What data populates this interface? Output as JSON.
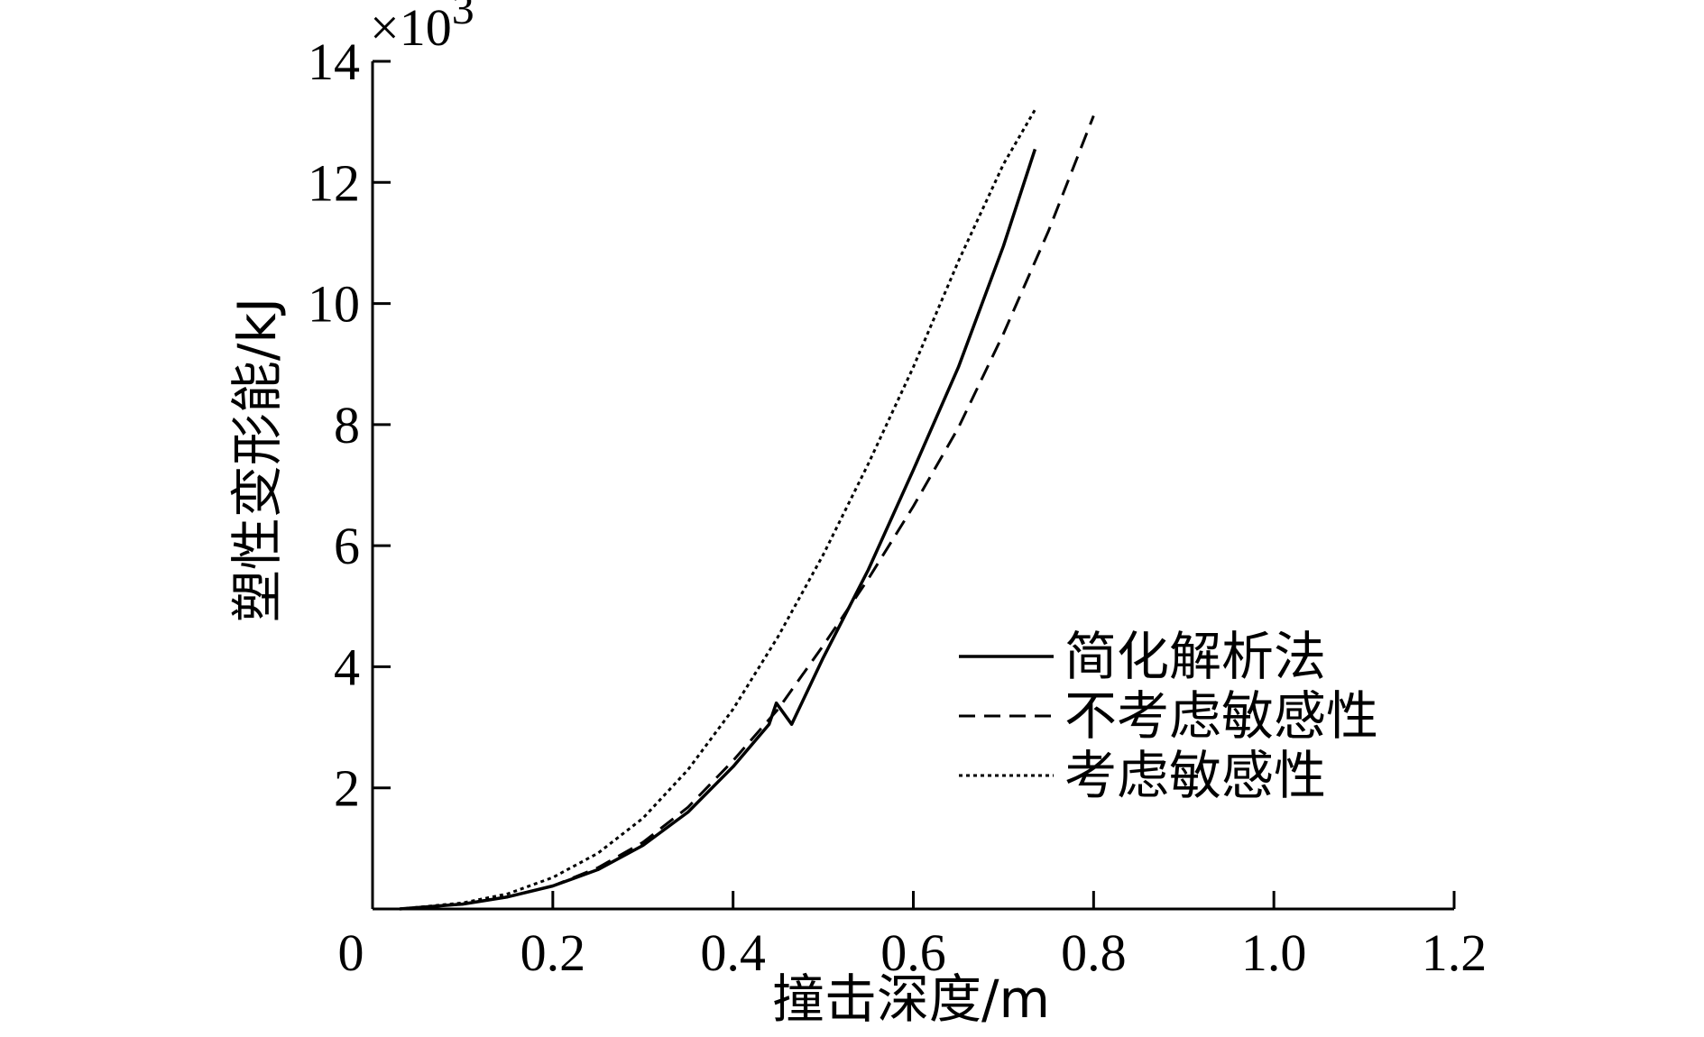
{
  "chart_data": {
    "type": "line",
    "xlabel": "撞击深度/m",
    "ylabel": "塑性变形能/kJ",
    "y_multiplier": "×10",
    "y_multiplier_exponent": "3",
    "xlim": [
      0,
      1.2
    ],
    "ylim": [
      0,
      14
    ],
    "xticks": [
      0,
      0.2,
      0.4,
      0.6,
      0.8,
      1.0,
      1.2
    ],
    "xtick_labels": [
      "0",
      "0.2",
      "0.4",
      "0.6",
      "0.8",
      "1.0",
      "1.2"
    ],
    "yticks": [
      2,
      4,
      6,
      8,
      10,
      12,
      14
    ],
    "ytick_labels": [
      "2",
      "4",
      "6",
      "8",
      "10",
      "12",
      "14"
    ],
    "grid": false,
    "legend_position": "bottom-right",
    "series": [
      {
        "name": "简化解析法",
        "style": "solid",
        "x": [
          0.03,
          0.1,
          0.15,
          0.2,
          0.25,
          0.3,
          0.35,
          0.4,
          0.44,
          0.448,
          0.465,
          0.5,
          0.55,
          0.6,
          0.65,
          0.7,
          0.735
        ],
        "y": [
          0.0,
          0.08,
          0.2,
          0.38,
          0.65,
          1.05,
          1.6,
          2.35,
          3.05,
          3.4,
          3.05,
          4.15,
          5.6,
          7.25,
          8.95,
          10.95,
          12.55
        ]
      },
      {
        "name": "不考虑敏感性",
        "style": "dashed",
        "x": [
          0.03,
          0.1,
          0.15,
          0.2,
          0.25,
          0.3,
          0.35,
          0.4,
          0.45,
          0.5,
          0.55,
          0.6,
          0.65,
          0.7,
          0.75,
          0.8
        ],
        "y": [
          0.0,
          0.08,
          0.2,
          0.38,
          0.68,
          1.1,
          1.68,
          2.45,
          3.3,
          4.35,
          5.45,
          6.65,
          7.95,
          9.5,
          11.2,
          13.1
        ]
      },
      {
        "name": "考虑敏感性",
        "style": "dotted",
        "x": [
          0.03,
          0.1,
          0.15,
          0.2,
          0.25,
          0.3,
          0.35,
          0.4,
          0.45,
          0.5,
          0.55,
          0.6,
          0.65,
          0.7,
          0.735
        ],
        "y": [
          0.0,
          0.1,
          0.25,
          0.52,
          0.92,
          1.5,
          2.3,
          3.3,
          4.5,
          5.85,
          7.35,
          8.95,
          10.7,
          12.3,
          13.2
        ]
      }
    ]
  }
}
